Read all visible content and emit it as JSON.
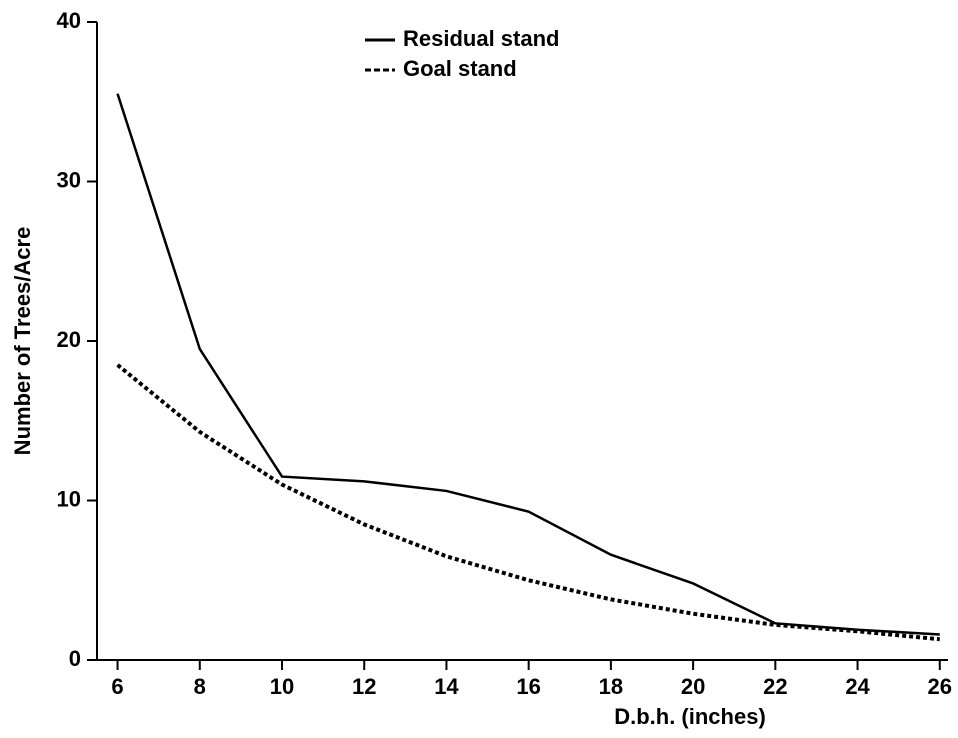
{
  "chart_data": {
    "type": "line",
    "x_label": "D.b.h. (inches)",
    "y_label": "Number of Trees/Acre",
    "x": [
      6,
      8,
      10,
      12,
      14,
      16,
      18,
      20,
      22,
      24,
      26
    ],
    "series": [
      {
        "name": "Residual stand",
        "color": "#000000",
        "dash": "solid",
        "values": [
          35.5,
          19.5,
          11.5,
          11.2,
          10.6,
          9.3,
          6.6,
          4.8,
          2.3,
          1.9,
          1.6
        ]
      },
      {
        "name": "Goal stand",
        "color": "#000000",
        "dash": "dotted",
        "values": [
          18.5,
          14.3,
          11.0,
          8.5,
          6.5,
          5.0,
          3.8,
          2.9,
          2.2,
          1.8,
          1.3
        ]
      }
    ],
    "xlim": [
      5.5,
      26.2
    ],
    "xticks": [
      6,
      8,
      10,
      12,
      14,
      16,
      18,
      20,
      22,
      24,
      26
    ],
    "ylim": [
      0,
      40
    ],
    "yticks": [
      0,
      10,
      20,
      30,
      40
    ],
    "grid": false,
    "legend": "top"
  }
}
